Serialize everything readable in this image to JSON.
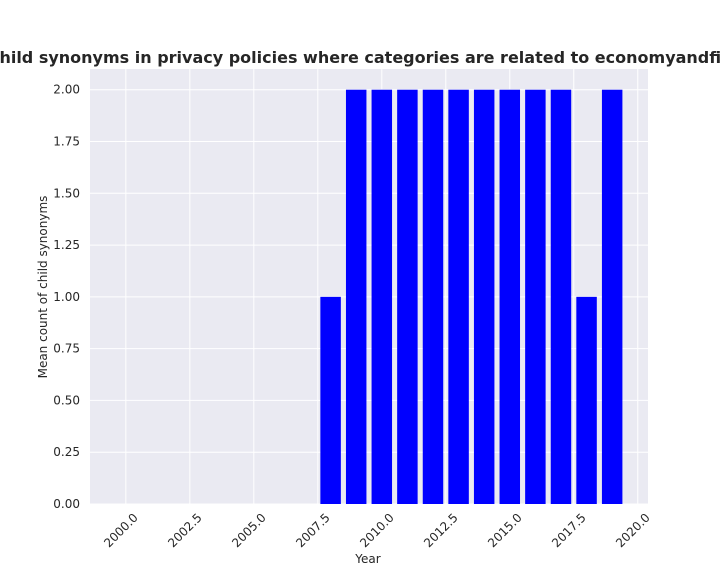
{
  "chart_data": {
    "type": "bar",
    "title": "Mean count of child synonyms in privacy policies where categories are related to economyandfinance;shopping",
    "xlabel": "Year",
    "ylabel": "Mean count of child synonyms",
    "x": [
      2008,
      2009,
      2010,
      2011,
      2012,
      2013,
      2014,
      2015,
      2016,
      2017,
      2018,
      2019
    ],
    "values": [
      1.0,
      2.0,
      2.0,
      2.0,
      2.0,
      2.0,
      2.0,
      2.0,
      2.0,
      2.0,
      1.0,
      2.0
    ],
    "xlim": [
      1998.6,
      2020.4
    ],
    "ylim": [
      0,
      2.1
    ],
    "xticks": [
      2000.0,
      2002.5,
      2005.0,
      2007.5,
      2010.0,
      2012.5,
      2015.0,
      2017.5,
      2020.0
    ],
    "xtick_labels": [
      "2000.0",
      "2002.5",
      "2005.0",
      "2007.5",
      "2010.0",
      "2012.5",
      "2015.0",
      "2017.5",
      "2020.0"
    ],
    "yticks": [
      0.0,
      0.25,
      0.5,
      0.75,
      1.0,
      1.25,
      1.5,
      1.75,
      2.0
    ],
    "ytick_labels": [
      "0.00",
      "0.25",
      "0.50",
      "0.75",
      "1.00",
      "1.25",
      "1.50",
      "1.75",
      "2.00"
    ],
    "bar_color": "#0000ff",
    "background_color": "#eaeaf2",
    "grid_color": "#ffffff",
    "grid": true,
    "legend": false
  }
}
